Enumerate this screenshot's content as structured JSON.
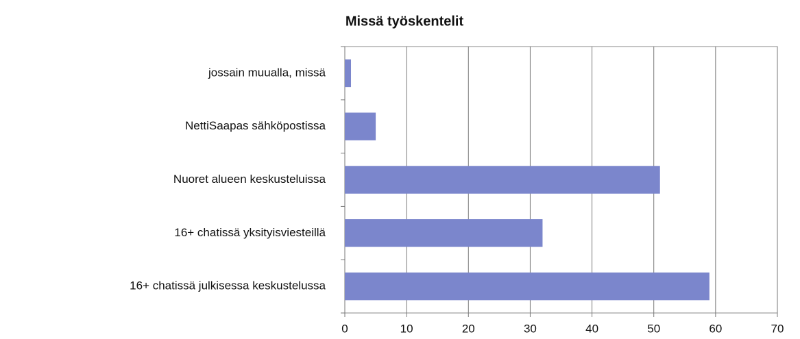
{
  "chart_data": {
    "type": "bar",
    "orientation": "horizontal",
    "title": "Missä työskentelit",
    "categories": [
      "jossain muualla, missä",
      "NettiSaapas sähköpostissa",
      "Nuoret alueen keskusteluissa",
      "16+ chatissä yksityisviesteillä",
      "16+ chatissä julkisessa keskustelussa"
    ],
    "values": [
      1,
      5,
      51,
      32,
      59
    ],
    "color": "#7b86cc",
    "xlim": [
      0,
      70
    ],
    "xticks": [
      0,
      10,
      20,
      30,
      40,
      50,
      60,
      70
    ],
    "grid": true
  }
}
